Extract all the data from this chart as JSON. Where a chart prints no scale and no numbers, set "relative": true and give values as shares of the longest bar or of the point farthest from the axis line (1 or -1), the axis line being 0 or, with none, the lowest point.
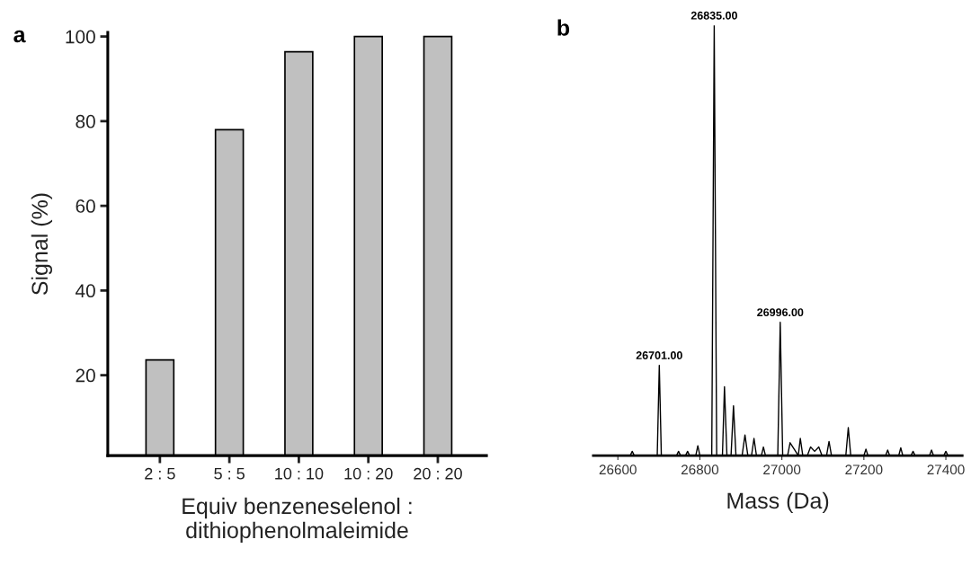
{
  "chart_data": [
    {
      "type": "bar",
      "categories": [
        "2 : 5",
        "5 : 5",
        "10 : 10",
        "10 : 20",
        "20 : 20"
      ],
      "values": [
        23.6,
        78,
        96.4,
        100,
        100
      ],
      "color": "#c0c0c0",
      "xlabel": "Equiv benzeneselenol :\ndithiophenolmaleimide",
      "ylabel": "Signal (%)",
      "ylim": [
        1,
        101
      ],
      "yticks": [
        20,
        40,
        60,
        80,
        100
      ],
      "grid": false,
      "annotations": [
        "a"
      ]
    },
    {
      "type": "line",
      "relative": true,
      "color": "#000000",
      "xlabel": "Mass (Da)",
      "xlim": [
        26540,
        27440
      ],
      "xticks": [
        26600,
        26800,
        27000,
        27200,
        27400
      ],
      "grid": false,
      "tick_labels": "x",
      "marker": "none",
      "line_style": "solid",
      "x": [
        26540,
        26630,
        26635,
        26640,
        26696,
        26701,
        26706,
        26743,
        26748,
        26753,
        26765,
        26770,
        26775,
        26790,
        26795,
        26800,
        26829,
        26835,
        26841,
        26855,
        26860,
        26866,
        26876,
        26882,
        26888,
        26903,
        26910,
        26917,
        26926,
        26932,
        26938,
        26950,
        26955,
        26960,
        26990,
        26996,
        27002,
        27014,
        27020,
        27030,
        27040,
        27045,
        27051,
        27062,
        27070,
        27080,
        27090,
        27098,
        27109,
        27115,
        27121,
        27156,
        27162,
        27168,
        27200,
        27205,
        27210,
        27253,
        27258,
        27263,
        27285,
        27290,
        27295,
        27315,
        27320,
        27325,
        27360,
        27365,
        27370,
        27395,
        27400,
        27405,
        27440
      ],
      "values": [
        0,
        0,
        0.01,
        0,
        0,
        0.21,
        0,
        0,
        0.01,
        0,
        0,
        0.01,
        0,
        0,
        0.023,
        0,
        0,
        1,
        0,
        0,
        0.16,
        0,
        0,
        0.116,
        0,
        0,
        0.048,
        0,
        0,
        0.04,
        0,
        0,
        0.02,
        0,
        0,
        0.31,
        0,
        0,
        0.03,
        0.015,
        0,
        0.04,
        0,
        0,
        0.02,
        0.01,
        0.02,
        0,
        0,
        0.033,
        0,
        0,
        0.065,
        0,
        0,
        0.015,
        0,
        0,
        0.013,
        0,
        0,
        0.018,
        0,
        0,
        0.01,
        0,
        0,
        0.013,
        0,
        0,
        0.01,
        0,
        0
      ],
      "annotations": [
        "b",
        {
          "text": "26701.00",
          "x": 26701,
          "y": 0.21
        },
        {
          "text": "26835.00",
          "x": 26835,
          "y": 1
        },
        {
          "text": "26996.00",
          "x": 26996,
          "y": 0.31
        }
      ]
    }
  ]
}
